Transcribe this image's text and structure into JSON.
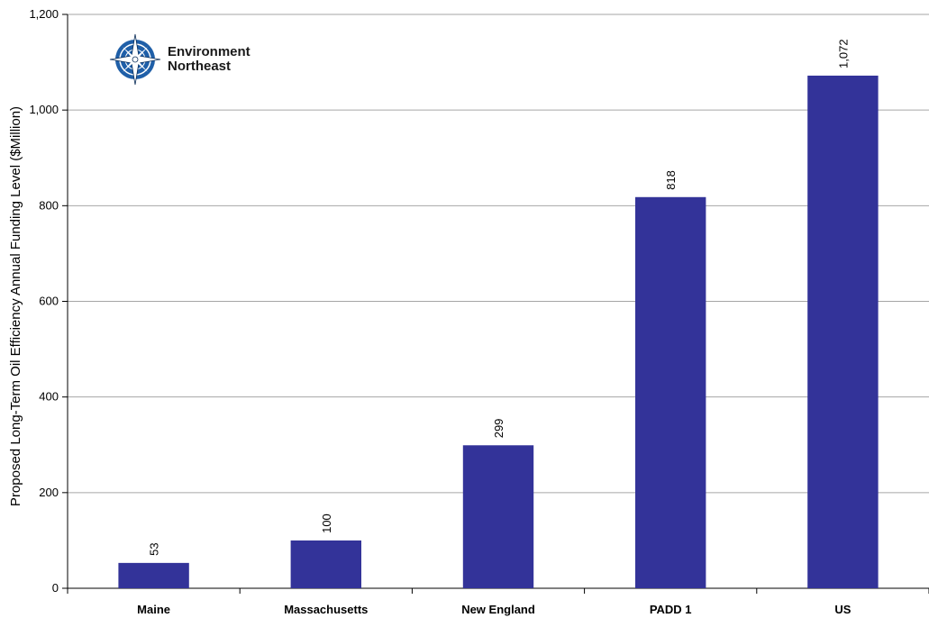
{
  "chart_data": {
    "type": "bar",
    "title": "",
    "xlabel": "",
    "ylabel": "Proposed Long-Term Oil Efficiency Annual Funding Level ($Million)",
    "categories": [
      "Maine",
      "Massachusetts",
      "New England",
      "PADD 1",
      "US"
    ],
    "values": [
      53,
      100,
      299,
      818,
      1072
    ],
    "data_labels": [
      "53",
      "100",
      "299",
      "818",
      "1,072"
    ],
    "ylim": [
      0,
      1200
    ],
    "yticks": [
      0,
      200,
      400,
      600,
      800,
      1000,
      1200
    ],
    "ytick_labels": [
      "0",
      "200",
      "400",
      "600",
      "800",
      "1,000",
      "1,200"
    ],
    "grid": true,
    "bar_color": "#333399"
  },
  "logo": {
    "line1": "Environment",
    "line2": "Northeast",
    "icon": "compass-rose-icon",
    "color": "#1f5fa8"
  }
}
